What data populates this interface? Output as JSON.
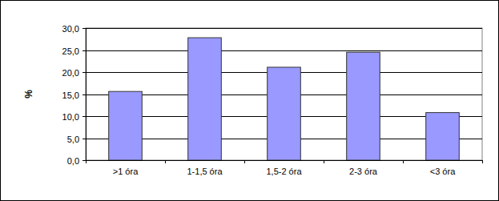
{
  "chart_data": {
    "type": "bar",
    "y_label": "%",
    "categories": [
      ">1 óra",
      "1-1,5 óra",
      "1,5-2 óra",
      "2-3 óra",
      "<3 óra"
    ],
    "values": [
      15.6,
      27.8,
      21.1,
      24.5,
      10.8
    ],
    "color": "#9999ff",
    "ylim": [
      0,
      30
    ],
    "yticks": [
      {
        "value": 0,
        "label": "0,0"
      },
      {
        "value": 5,
        "label": "5,0"
      },
      {
        "value": 10,
        "label": "10,0"
      },
      {
        "value": 15,
        "label": "15,0"
      },
      {
        "value": 20,
        "label": "20,0"
      },
      {
        "value": 25,
        "label": "25,0"
      },
      {
        "value": 30,
        "label": "30,0"
      }
    ],
    "grid": true
  }
}
